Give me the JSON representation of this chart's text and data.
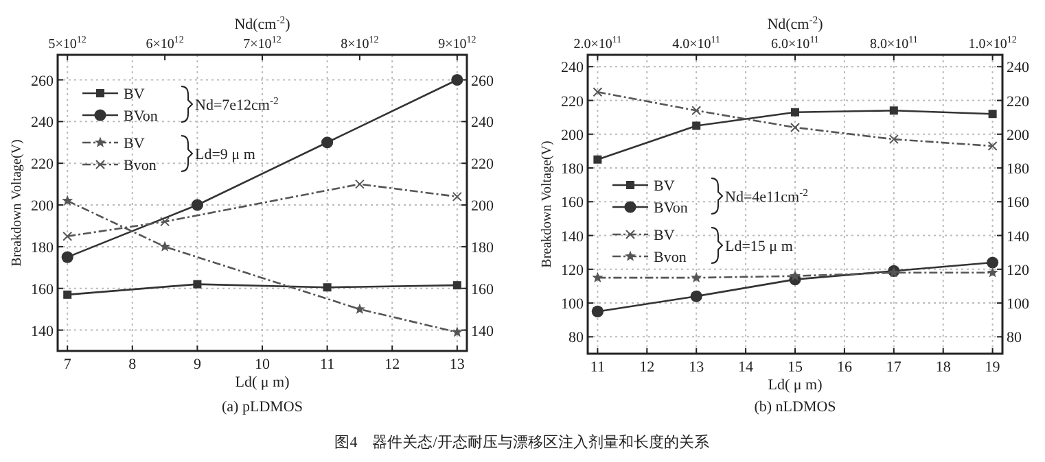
{
  "chart_data": [
    {
      "type": "line",
      "title": "(a) pLDMOS",
      "xlabel": "Ld( μ m)",
      "x2label": "Nd(cm$^{-2}$)",
      "ylabel": "Breakdown Voltage(V)",
      "xlim": [
        6.85,
        13.15
      ],
      "xticks": [
        7,
        8,
        9,
        10,
        11,
        12,
        13
      ],
      "x2lim": [
        4900000000000.0,
        9100000000000.0
      ],
      "x2ticks": [
        {
          "value": 5000000000000.0,
          "label": "5×10$^{12}$"
        },
        {
          "value": 6000000000000.0,
          "label": "6×10$^{12}$"
        },
        {
          "value": 7000000000000.0,
          "label": "7×10$^{12}$"
        },
        {
          "value": 8000000000000.0,
          "label": "8×10$^{12}$"
        },
        {
          "value": 9000000000000.0,
          "label": "9×10$^{12}$"
        }
      ],
      "ylim": [
        130,
        272
      ],
      "yticks": [
        140,
        160,
        180,
        200,
        220,
        240,
        260
      ],
      "y2lim": [
        130,
        272
      ],
      "y2ticks": [
        140,
        160,
        180,
        200,
        220,
        240,
        260
      ],
      "grid": true,
      "legend": "top left",
      "annotations": [
        "Nd=7e12cm$^{-2}$",
        "Ld=9 μ m",
        "图4　器件关态/开态耐压与漂移区注入剂量和长度的关系"
      ],
      "series": [
        {
          "name": "BV",
          "color": "#333333",
          "marker": "square",
          "line_style": "solid",
          "x": [
            7,
            9,
            11,
            13
          ],
          "values": [
            157,
            162,
            160.5,
            161.5
          ]
        },
        {
          "name": "BVon",
          "color": "#333333",
          "marker": "circle",
          "line_style": "solid",
          "x": [
            7,
            9,
            11,
            13
          ],
          "values": [
            175,
            200,
            230,
            260
          ]
        },
        {
          "name": "BV",
          "color": "#555555",
          "marker": "star",
          "line_style": "dashed",
          "axis": "x2",
          "x": [
            5000000000000.0,
            6000000000000.0,
            8000000000000.0,
            9000000000000.0
          ],
          "values": [
            202,
            180,
            150,
            139
          ]
        },
        {
          "name": "Bvon",
          "color": "#555555",
          "marker": "cross",
          "line_style": "dashed",
          "axis": "x2",
          "x": [
            5000000000000.0,
            6000000000000.0,
            8000000000000.0,
            9000000000000.0
          ],
          "values": [
            185,
            192,
            210,
            204
          ]
        }
      ]
    },
    {
      "type": "line",
      "title": "(b) nLDMOS",
      "xlabel": "Ld( μ m)",
      "x2label": "Nd(cm$^{-2}$)",
      "ylabel": "Breakdown Voltage(V)",
      "xlim": [
        10.8,
        19.2
      ],
      "xticks": [
        11,
        12,
        13,
        14,
        15,
        16,
        17,
        18,
        19
      ],
      "x2lim": [
        180000000000.0,
        1020000000000.0
      ],
      "x2ticks": [
        {
          "value": 200000000000.0,
          "label": "2.0×10$^{11}$"
        },
        {
          "value": 400000000000.0,
          "label": "4.0×10$^{11}$"
        },
        {
          "value": 600000000000.0,
          "label": "6.0×10$^{11}$"
        },
        {
          "value": 800000000000.0,
          "label": "8.0×10$^{11}$"
        },
        {
          "value": 1000000000000.0,
          "label": "1.0×10$^{12}$"
        }
      ],
      "ylim": [
        70,
        247
      ],
      "yticks": [
        80,
        100,
        120,
        140,
        160,
        180,
        200,
        220,
        240
      ],
      "y2lim": [
        70,
        247
      ],
      "y2ticks": [
        80,
        100,
        120,
        140,
        160,
        180,
        200,
        220,
        240
      ],
      "grid": true,
      "legend": "left",
      "annotations": [
        "Nd=4e11cm$^{-2}$",
        "Ld=15 μ m"
      ],
      "series": [
        {
          "name": "BV",
          "color": "#333333",
          "marker": "square",
          "line_style": "solid",
          "x": [
            11,
            13,
            15,
            17,
            19
          ],
          "values": [
            185,
            205,
            213,
            214,
            212
          ]
        },
        {
          "name": "BVon",
          "color": "#333333",
          "marker": "circle",
          "line_style": "solid",
          "x": [
            11,
            13,
            15,
            17,
            19
          ],
          "values": [
            95,
            104,
            114,
            119,
            124
          ]
        },
        {
          "name": "BV",
          "color": "#555555",
          "marker": "cross",
          "line_style": "dashed",
          "axis": "x2",
          "x": [
            200000000000.0,
            400000000000.0,
            600000000000.0,
            800000000000.0,
            1000000000000.0
          ],
          "values": [
            225,
            214,
            204,
            197,
            193
          ]
        },
        {
          "name": "Bvon",
          "color": "#555555",
          "marker": "star",
          "line_style": "dashed",
          "axis": "x2",
          "x": [
            200000000000.0,
            400000000000.0,
            600000000000.0,
            800000000000.0,
            1000000000000.0
          ],
          "values": [
            115,
            115,
            116,
            118,
            118
          ]
        }
      ]
    }
  ]
}
